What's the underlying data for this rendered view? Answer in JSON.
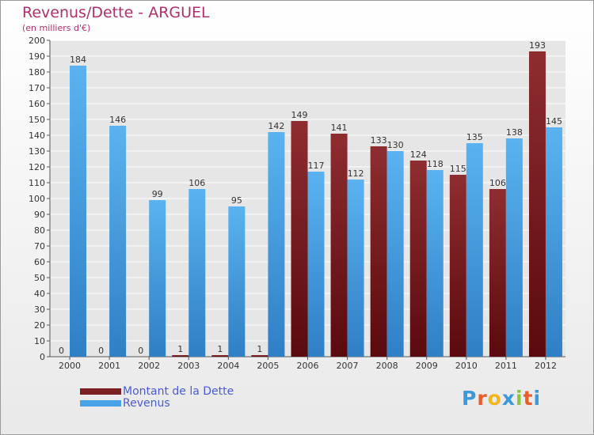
{
  "chart_data": {
    "type": "bar",
    "title": "Revenus/Dette - ARGUEL",
    "subtitle": "(en milliers d'€)",
    "categories": [
      "2000",
      "2001",
      "2002",
      "2003",
      "2004",
      "2005",
      "2006",
      "2007",
      "2008",
      "2009",
      "2010",
      "2011",
      "2012"
    ],
    "series": [
      {
        "name": "Montant de la Dette",
        "color": "#7a1f22",
        "values": [
          0,
          0,
          0,
          1,
          1,
          1,
          149,
          141,
          133,
          124,
          115,
          106,
          193
        ]
      },
      {
        "name": "Revenus",
        "color": "#4aa3e6",
        "values": [
          184,
          146,
          99,
          106,
          95,
          142,
          117,
          112,
          130,
          118,
          135,
          138,
          145
        ]
      }
    ],
    "ylim": [
      0,
      200
    ],
    "ytick_step": 10,
    "grid": true,
    "legend_position": "bottom-left"
  },
  "logo": {
    "text": "Proxiti",
    "colors": [
      "#3a9ad9",
      "#e85d2a",
      "#f2b51a",
      "#3a9ad9",
      "#8bc53f",
      "#e85d2a",
      "#3a9ad9"
    ]
  }
}
